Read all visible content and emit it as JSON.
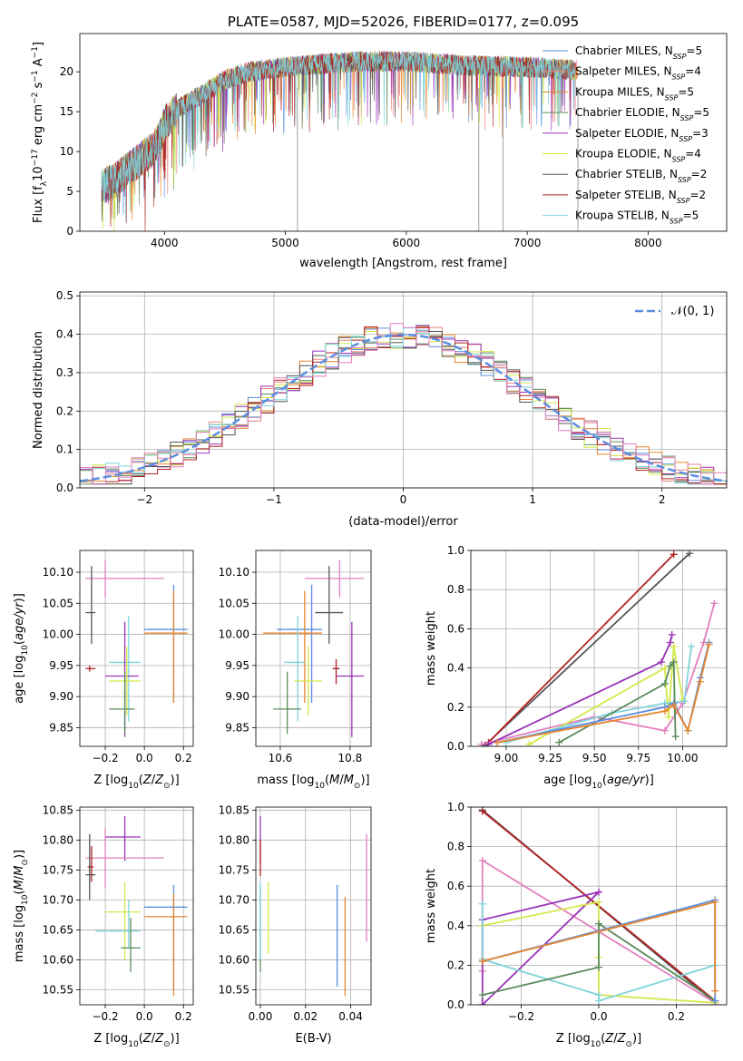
{
  "figure_title": "PLATE=0587, MJD=52026, FIBERID=0177, z=0.095",
  "colors": {
    "chabrier_miles": "#5b8ee0",
    "salpeter_miles": "#e8857a",
    "kroupa_miles": "#e6862e",
    "chabrier_elodie": "#5c8c5c",
    "salpeter_elodie": "#9932b8",
    "kroupa_elodie": "#d4e84a",
    "chabrier_stelib": "#555555",
    "salpeter_stelib": "#b22222",
    "kroupa_stelib": "#7fd4dc",
    "pink": "#e27fbd",
    "normal_curve": "#5b8ee0"
  },
  "chart_data": [
    {
      "id": "spectrum",
      "type": "line",
      "title": "PLATE=0587, MJD=52026, FIBERID=0177, z=0.095",
      "xlabel": "wavelength [Angstrom, rest frame]",
      "ylabel": "Flux [f_λ 10^-17 erg cm^-2 s^-1 A^-1]",
      "xlim": [
        3300,
        8650
      ],
      "ylim": [
        0,
        24.8
      ],
      "xticks": [
        4000,
        5000,
        6000,
        7000,
        8000
      ],
      "yticks": [
        0,
        5,
        10,
        15,
        20
      ],
      "grid": false,
      "legend_position": "top-right",
      "series": [
        {
          "name": "Chabrier MILES, N_SSP=5",
          "color": "#5b8ee0"
        },
        {
          "name": "Salpeter MILES, N_SSP=4",
          "color": "#e8857a"
        },
        {
          "name": "Kroupa MILES, N_SSP=5",
          "color": "#e6862e"
        },
        {
          "name": "Chabrier ELODIE, N_SSP=5",
          "color": "#5c8c5c"
        },
        {
          "name": "Salpeter ELODIE, N_SSP=3",
          "color": "#9932b8"
        },
        {
          "name": "Kroupa ELODIE, N_SSP=4",
          "color": "#d4e84a"
        },
        {
          "name": "Chabrier STELIB, N_SSP=2",
          "color": "#555555"
        },
        {
          "name": "Salpeter STELIB, N_SSP=2",
          "color": "#b22222"
        },
        {
          "name": "Kroupa STELIB, N_SSP=5",
          "color": "#7fd4dc"
        }
      ],
      "continuum": {
        "x": [
          3480,
          3600,
          3700,
          3800,
          3900,
          3950,
          4000,
          4100,
          4200,
          4300,
          4400,
          4500,
          4700,
          5000,
          5300,
          5600,
          6000,
          6500,
          7000,
          7200,
          7400
        ],
        "y": [
          5.5,
          6.5,
          7.8,
          9.0,
          10.2,
          11.5,
          13.5,
          15.2,
          16.2,
          17.0,
          18.0,
          19.0,
          20.0,
          20.6,
          21.0,
          21.3,
          21.3,
          20.8,
          20.6,
          20.4,
          20.2
        ]
      },
      "sharp_dips": [
        {
          "x": 5100,
          "y": 0
        },
        {
          "x": 6600,
          "y": 0
        },
        {
          "x": 6800,
          "y": 0
        },
        {
          "x": 7420,
          "y": 0
        }
      ]
    },
    {
      "id": "residuals",
      "type": "area",
      "xlabel": "(data-model)/error",
      "ylabel": "Normed distribution",
      "xlim": [
        -2.5,
        2.5
      ],
      "ylim": [
        0,
        0.51
      ],
      "xticks": [
        -2,
        -1,
        0,
        1,
        2
      ],
      "yticks": [
        0.0,
        0.1,
        0.2,
        0.3,
        0.4,
        0.5
      ],
      "grid": true,
      "legend_position": "top-right",
      "normal_curve_label": "𝒩(0, 1)",
      "bin_width": 0.1
    },
    {
      "id": "age_vs_Z",
      "type": "scatter",
      "xlabel": "Z [log10(Z/Z☉)]",
      "ylabel": "age [log10(age/yr)]",
      "xlim": [
        -0.33,
        0.25
      ],
      "ylim": [
        9.82,
        10.135
      ],
      "xticks": [
        -0.2,
        0.0,
        0.2
      ],
      "yticks": [
        9.85,
        9.9,
        9.95,
        10.0,
        10.05,
        10.1
      ],
      "grid": true,
      "points": [
        {
          "x": -0.2,
          "y": 10.09,
          "xlo": -0.3,
          "xhi": 0.1,
          "ylo": 10.06,
          "yhi": 10.12,
          "color": "#e27fbd"
        },
        {
          "x": -0.27,
          "y": 10.035,
          "xlo": -0.3,
          "xhi": -0.25,
          "ylo": 9.985,
          "yhi": 10.11,
          "color": "#555555"
        },
        {
          "x": 0.15,
          "y": 10.008,
          "xlo": 0.0,
          "xhi": 0.22,
          "ylo": 9.89,
          "yhi": 10.08,
          "color": "#5b8ee0"
        },
        {
          "x": 0.15,
          "y": 10.002,
          "xlo": 0.0,
          "xhi": 0.22,
          "ylo": 9.89,
          "yhi": 10.07,
          "color": "#e6862e"
        },
        {
          "x": -0.08,
          "y": 9.955,
          "xlo": -0.18,
          "xhi": -0.02,
          "ylo": 9.86,
          "yhi": 10.03,
          "color": "#7fd4dc"
        },
        {
          "x": -0.28,
          "y": 9.945,
          "xlo": -0.3,
          "xhi": -0.25,
          "ylo": 9.94,
          "yhi": 9.95,
          "color": "#b22222"
        },
        {
          "x": -0.1,
          "y": 9.933,
          "xlo": -0.2,
          "xhi": -0.03,
          "ylo": 9.835,
          "yhi": 10.02,
          "color": "#9932b8"
        },
        {
          "x": -0.09,
          "y": 9.925,
          "xlo": -0.18,
          "xhi": -0.02,
          "ylo": 9.87,
          "yhi": 9.98,
          "color": "#d4e84a"
        },
        {
          "x": -0.1,
          "y": 9.88,
          "xlo": -0.18,
          "xhi": -0.05,
          "ylo": 9.84,
          "yhi": 9.94,
          "color": "#5c8c5c"
        }
      ]
    },
    {
      "id": "age_vs_mass",
      "type": "scatter",
      "xlabel": "mass [log10(M/M☉)]",
      "ylabel": "",
      "xlim": [
        10.53,
        10.86
      ],
      "ylim": [
        9.82,
        10.135
      ],
      "xticks": [
        10.6,
        10.8
      ],
      "yticks": [
        9.85,
        9.9,
        9.95,
        10.0,
        10.05,
        10.1
      ],
      "grid": true,
      "points": [
        {
          "x": 10.77,
          "y": 10.09,
          "xlo": 10.67,
          "xhi": 10.84,
          "ylo": 10.06,
          "yhi": 10.12,
          "color": "#e27fbd"
        },
        {
          "x": 10.74,
          "y": 10.035,
          "xlo": 10.7,
          "xhi": 10.78,
          "ylo": 9.985,
          "yhi": 10.11,
          "color": "#555555"
        },
        {
          "x": 10.69,
          "y": 10.008,
          "xlo": 10.59,
          "xhi": 10.72,
          "ylo": 9.89,
          "yhi": 10.08,
          "color": "#5b8ee0"
        },
        {
          "x": 10.67,
          "y": 10.002,
          "xlo": 10.55,
          "xhi": 10.72,
          "ylo": 9.89,
          "yhi": 10.07,
          "color": "#e6862e"
        },
        {
          "x": 10.65,
          "y": 9.955,
          "xlo": 10.61,
          "xhi": 10.67,
          "ylo": 9.86,
          "yhi": 10.03,
          "color": "#7fd4dc"
        },
        {
          "x": 10.76,
          "y": 9.945,
          "xlo": 10.75,
          "xhi": 10.77,
          "ylo": 9.92,
          "yhi": 9.96,
          "color": "#b22222"
        },
        {
          "x": 10.805,
          "y": 9.933,
          "xlo": 10.76,
          "xhi": 10.84,
          "ylo": 9.835,
          "yhi": 10.02,
          "color": "#9932b8"
        },
        {
          "x": 10.68,
          "y": 9.925,
          "xlo": 10.64,
          "xhi": 10.72,
          "ylo": 9.87,
          "yhi": 9.98,
          "color": "#d4e84a"
        },
        {
          "x": 10.62,
          "y": 9.88,
          "xlo": 10.58,
          "xhi": 10.66,
          "ylo": 9.84,
          "yhi": 9.94,
          "color": "#5c8c5c"
        }
      ]
    },
    {
      "id": "weight_vs_age",
      "type": "line",
      "xlabel": "age [log10(age/yr)]",
      "ylabel": "mass weight",
      "xlim": [
        8.8,
        10.25
      ],
      "ylim": [
        0,
        1.0
      ],
      "xticks": [
        9.0,
        9.25,
        9.5,
        9.75,
        10.0
      ],
      "yticks": [
        0.0,
        0.2,
        0.4,
        0.6,
        0.8,
        1.0
      ],
      "grid": true,
      "series": [
        {
          "color": "#555555",
          "x": [
            8.88,
            10.04
          ],
          "y": [
            0.005,
            0.985
          ]
        },
        {
          "color": "#b22222",
          "x": [
            8.9,
            9.95
          ],
          "y": [
            0.02,
            0.98
          ]
        },
        {
          "color": "#e27fbd",
          "x": [
            8.86,
            9.5,
            9.9,
            10.0,
            10.12,
            10.18
          ],
          "y": [
            0.01,
            0.15,
            0.08,
            0.22,
            0.53,
            0.73
          ]
        },
        {
          "color": "#9932b8",
          "x": [
            8.9,
            9.88,
            9.93,
            9.94
          ],
          "y": [
            0.01,
            0.43,
            0.53,
            0.57
          ]
        },
        {
          "color": "#d4e84a",
          "x": [
            9.13,
            9.9,
            9.92,
            9.95,
            10.0
          ],
          "y": [
            0.01,
            0.4,
            0.15,
            0.51,
            0.24
          ]
        },
        {
          "color": "#7fd4dc",
          "x": [
            9.0,
            9.6,
            9.9,
            10.01,
            10.05
          ],
          "y": [
            0.02,
            0.17,
            0.22,
            0.23,
            0.51
          ]
        },
        {
          "color": "#5c8c5c",
          "x": [
            9.3,
            9.9,
            9.93,
            9.95,
            9.96
          ],
          "y": [
            0.02,
            0.32,
            0.41,
            0.43,
            0.05
          ]
        },
        {
          "color": "#5b8ee0",
          "x": [
            8.95,
            9.9,
            9.95,
            10.03,
            10.1,
            10.15
          ],
          "y": [
            0.02,
            0.2,
            0.22,
            0.08,
            0.35,
            0.53
          ]
        },
        {
          "color": "#e6862e",
          "x": [
            8.95,
            9.9,
            9.95,
            10.03,
            10.1,
            10.15
          ],
          "y": [
            0.02,
            0.18,
            0.21,
            0.08,
            0.33,
            0.52
          ]
        }
      ]
    },
    {
      "id": "mass_vs_Z",
      "type": "scatter",
      "xlabel": "Z [log10(Z/Z☉)]",
      "ylabel": "mass [log10(M/M☉)]",
      "xlim": [
        -0.33,
        0.25
      ],
      "ylim": [
        10.525,
        10.855
      ],
      "xticks": [
        -0.2,
        0.0,
        0.2
      ],
      "yticks": [
        10.55,
        10.6,
        10.65,
        10.7,
        10.75,
        10.8,
        10.85
      ],
      "grid": true,
      "points": [
        {
          "x": -0.1,
          "y": 10.805,
          "xlo": -0.2,
          "xhi": -0.02,
          "ylo": 10.765,
          "yhi": 10.84,
          "color": "#9932b8"
        },
        {
          "x": -0.2,
          "y": 10.77,
          "xlo": -0.3,
          "xhi": 0.1,
          "ylo": 10.72,
          "yhi": 10.82,
          "color": "#e27fbd"
        },
        {
          "x": -0.27,
          "y": 10.755,
          "xlo": -0.29,
          "xhi": -0.26,
          "ylo": 10.73,
          "yhi": 10.79,
          "color": "#b22222"
        },
        {
          "x": -0.28,
          "y": 10.742,
          "xlo": -0.3,
          "xhi": -0.25,
          "ylo": 10.7,
          "yhi": 10.81,
          "color": "#555555"
        },
        {
          "x": 0.15,
          "y": 10.688,
          "xlo": 0.0,
          "xhi": 0.22,
          "ylo": 10.55,
          "yhi": 10.725,
          "color": "#5b8ee0"
        },
        {
          "x": -0.1,
          "y": 10.68,
          "xlo": -0.2,
          "xhi": -0.02,
          "ylo": 10.6,
          "yhi": 10.73,
          "color": "#d4e84a"
        },
        {
          "x": 0.15,
          "y": 10.672,
          "xlo": 0.0,
          "xhi": 0.22,
          "ylo": 10.54,
          "yhi": 10.71,
          "color": "#e6862e"
        },
        {
          "x": -0.08,
          "y": 10.648,
          "xlo": -0.25,
          "xhi": -0.02,
          "ylo": 10.62,
          "yhi": 10.7,
          "color": "#7fd4dc"
        },
        {
          "x": -0.07,
          "y": 10.62,
          "xlo": -0.12,
          "xhi": -0.02,
          "ylo": 10.58,
          "yhi": 10.67,
          "color": "#5c8c5c"
        }
      ]
    },
    {
      "id": "mass_vs_ebv",
      "type": "scatter",
      "xlabel": "E(B-V)",
      "ylabel": "",
      "xlim": [
        -0.002,
        0.049
      ],
      "ylim": [
        10.525,
        10.855
      ],
      "xticks": [
        0.0,
        0.02,
        0.04
      ],
      "yticks": [
        10.55,
        10.6,
        10.65,
        10.7,
        10.75,
        10.8,
        10.85
      ],
      "grid": true,
      "points": [
        {
          "x": 0.0,
          "y": 10.8,
          "xlo": 0.0,
          "xhi": 0.0,
          "ylo": 10.76,
          "yhi": 10.84,
          "color": "#9932b8"
        },
        {
          "x": 0.0,
          "y": 10.78,
          "xlo": 0.0,
          "xhi": 0.0,
          "ylo": 10.74,
          "yhi": 10.8,
          "color": "#b22222"
        },
        {
          "x": 0.0,
          "y": 10.65,
          "xlo": 0.0,
          "xhi": 0.0,
          "ylo": 10.58,
          "yhi": 10.72,
          "color": "#5c8c5c"
        },
        {
          "x": 0.0,
          "y": 10.65,
          "xlo": 0.0,
          "xhi": 0.0,
          "ylo": 10.6,
          "yhi": 10.73,
          "color": "#7fd4dc"
        },
        {
          "x": 0.0035,
          "y": 10.67,
          "xlo": 0.0035,
          "xhi": 0.0035,
          "ylo": 10.61,
          "yhi": 10.73,
          "color": "#d4e84a"
        },
        {
          "x": 0.034,
          "y": 10.64,
          "xlo": 0.034,
          "xhi": 0.034,
          "ylo": 10.555,
          "yhi": 10.725,
          "color": "#5b8ee0"
        },
        {
          "x": 0.0375,
          "y": 10.63,
          "xlo": 0.0375,
          "xhi": 0.0375,
          "ylo": 10.54,
          "yhi": 10.705,
          "color": "#e6862e"
        },
        {
          "x": 0.047,
          "y": 10.72,
          "xlo": 0.047,
          "xhi": 0.047,
          "ylo": 10.63,
          "yhi": 10.81,
          "color": "#e27fbd"
        }
      ]
    },
    {
      "id": "weight_vs_Z",
      "type": "line",
      "xlabel": "Z [log10(Z/Z☉)]",
      "ylabel": "mass weight",
      "xlim": [
        -0.33,
        0.33
      ],
      "ylim": [
        0,
        1.0
      ],
      "xticks": [
        -0.2,
        0.0,
        0.2
      ],
      "yticks": [
        0.0,
        0.2,
        0.4,
        0.6,
        0.8,
        1.0
      ],
      "grid": true,
      "series": [
        {
          "color": "#555555",
          "x": [
            -0.3,
            0.3
          ],
          "y": [
            0.985,
            0.01
          ]
        },
        {
          "color": "#b22222",
          "x": [
            -0.3,
            0.3
          ],
          "y": [
            0.98,
            0.02
          ]
        },
        {
          "color": "#e27fbd",
          "x": [
            -0.3,
            -0.3,
            0.3,
            0.3
          ],
          "y": [
            0.17,
            0.73,
            0.01,
            0.0
          ]
        },
        {
          "color": "#9932b8",
          "x": [
            -0.3,
            -0.3,
            0.0,
            -0.3
          ],
          "y": [
            0.0,
            0.43,
            0.57,
            0.0
          ]
        },
        {
          "color": "#d4e84a",
          "x": [
            -0.3,
            0.0,
            0.0,
            0.0,
            0.3
          ],
          "y": [
            0.4,
            0.52,
            0.24,
            0.05,
            0.01
          ]
        },
        {
          "color": "#7fd4dc",
          "x": [
            -0.3,
            -0.3,
            0.0,
            0.0,
            0.3
          ],
          "y": [
            0.51,
            0.23,
            0.05,
            0.02,
            0.2
          ]
        },
        {
          "color": "#5c8c5c",
          "x": [
            -0.3,
            0.0,
            0.0,
            0.3
          ],
          "y": [
            0.05,
            0.19,
            0.41,
            0.02
          ]
        },
        {
          "color": "#5b8ee0",
          "x": [
            -0.3,
            0.3,
            0.3
          ],
          "y": [
            0.22,
            0.53,
            0.02
          ]
        },
        {
          "color": "#e6862e",
          "x": [
            -0.3,
            0.3,
            0.3
          ],
          "y": [
            0.22,
            0.52,
            0.07
          ]
        }
      ]
    }
  ]
}
